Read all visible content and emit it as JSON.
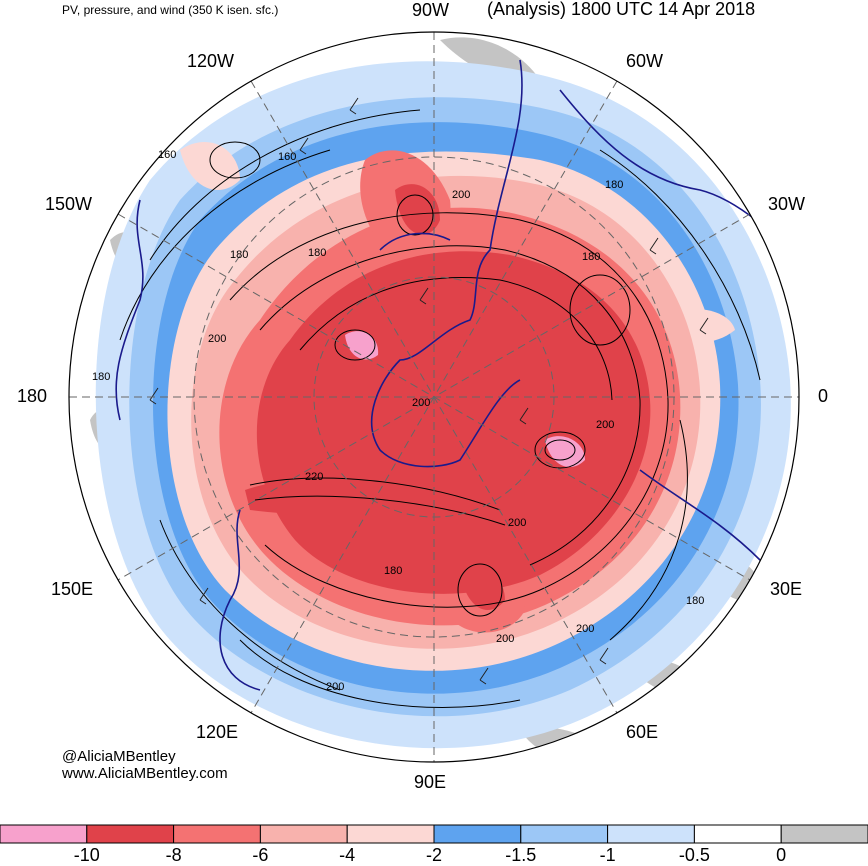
{
  "header": {
    "left_title": "PV, pressure, and wind (350 K isen. sfc.)",
    "right_title": "(Analysis) 1800 UTC 14 Apr 2018"
  },
  "map": {
    "projection": "north polar stereographic",
    "longitude_labels": [
      "90W",
      "60W",
      "30W",
      "0",
      "30E",
      "60E",
      "90E",
      "120E",
      "150E",
      "180",
      "150W",
      "120W"
    ],
    "contour_labels": [
      "160",
      "160",
      "180",
      "200",
      "180",
      "200",
      "200",
      "180",
      "180",
      "200",
      "180",
      "220",
      "200",
      "180",
      "200",
      "200",
      "180",
      "200"
    ]
  },
  "credits": {
    "handle": "@AliciaMBentley",
    "website": "www.AliciaMBentley.com"
  },
  "colorbar": {
    "colors": [
      "#f7a1cc",
      "#e0424a",
      "#f47272",
      "#f8b2ad",
      "#fcd8d4",
      "#5ea3ef",
      "#9cc7f6",
      "#cde2fb",
      "#ffffff",
      "#c4c4c4"
    ],
    "ticks": [
      "-10",
      "-8",
      "-6",
      "-4",
      "-2",
      "-1.5",
      "-1",
      "-0.5",
      "0"
    ]
  }
}
